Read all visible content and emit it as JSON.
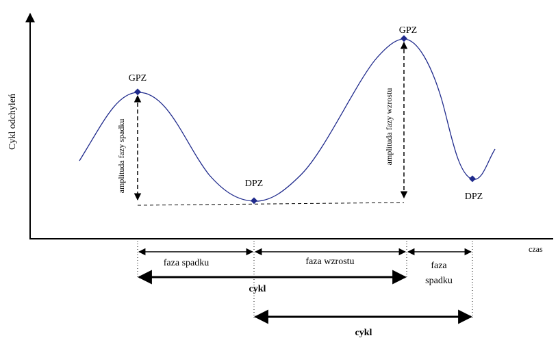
{
  "axes": {
    "y_label": "Cykl odchyleń",
    "x_label": "czas"
  },
  "points": {
    "peak1": "GPZ",
    "trough1": "DPZ",
    "peak2": "GPZ",
    "trough2": "DPZ"
  },
  "amplitudes": {
    "decline": "amplituda fazy spadku",
    "growth": "amplituda fazy wzrostu"
  },
  "phases": {
    "decline1": "faza spadku",
    "growth": "faza wzrostu",
    "decline2_line1": "faza",
    "decline2_line2": "spadku"
  },
  "cycles": {
    "cycle1": "cykl",
    "cycle2": "cykl"
  },
  "colors": {
    "curve": "#1f2a8c",
    "marker": "#1f2a8c",
    "lines": "#000000"
  }
}
